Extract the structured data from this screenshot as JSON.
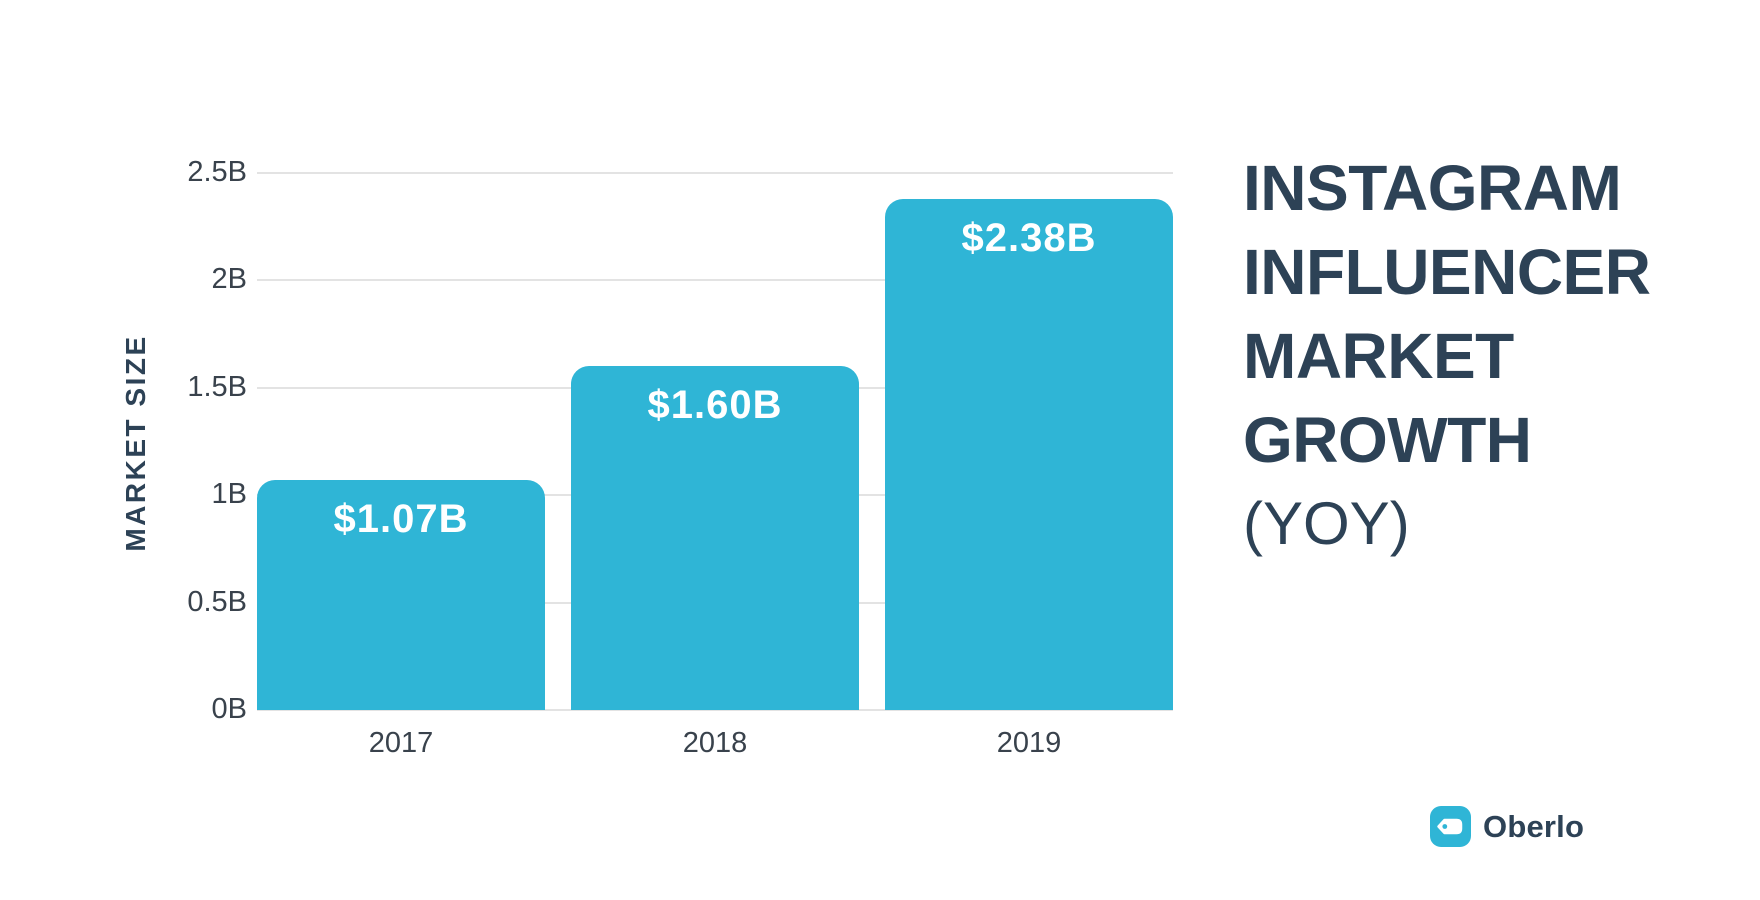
{
  "chart_data": {
    "type": "bar",
    "title": "INSTAGRAM INFLUENCER MARKET GROWTH (YOY)",
    "categories": [
      "2017",
      "2018",
      "2019"
    ],
    "values": [
      1.07,
      1.6,
      2.38
    ],
    "value_labels": [
      "$1.07B",
      "$1.60B",
      "$2.38B"
    ],
    "xlabel": "",
    "ylabel": "MARKET SIZE",
    "ylim": [
      0,
      2.5
    ],
    "ytick_values": [
      2.5,
      2.0,
      1.5,
      1.0,
      0.5,
      0
    ],
    "ytick_labels": [
      "2.5B",
      "2B",
      "1.5B",
      "1B",
      "0.5B",
      "0B"
    ],
    "grid": "horizontal",
    "legend": "none",
    "bar_color": "#2fb5d6",
    "value_label_color": "#ffffff"
  },
  "title_block": {
    "lines": [
      "INSTAGRAM",
      "INFLUENCER",
      "MARKET",
      "GROWTH"
    ],
    "subtitle": "(YOY)",
    "color": "#2d4256"
  },
  "brand": {
    "name": "Oberlo",
    "icon": "price-tag-icon",
    "icon_color": "#2fb5d6",
    "text_color": "#2d4256"
  }
}
